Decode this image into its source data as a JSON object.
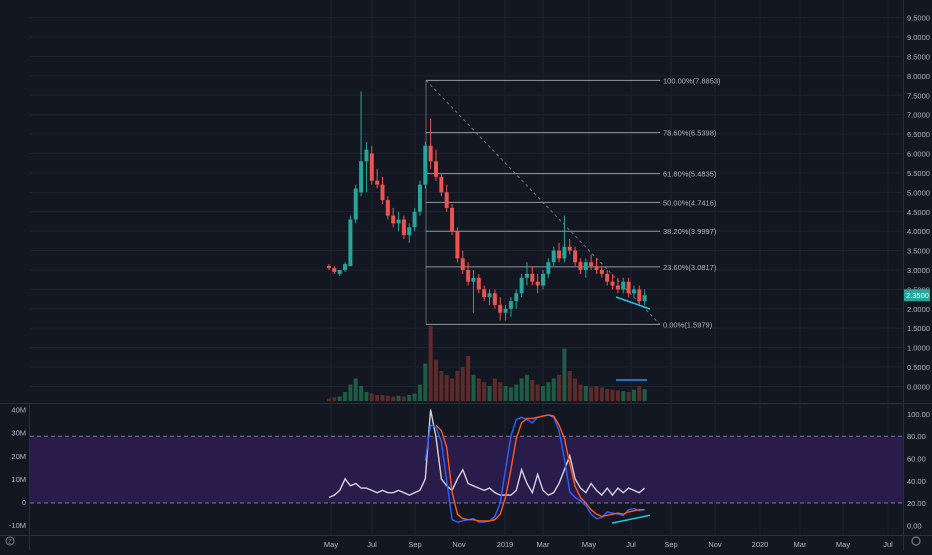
{
  "theme": {
    "background": "#131722",
    "grid": "#1f2330",
    "axis_text": "#b2b5be",
    "up": "#26a69a",
    "down": "#ef5350",
    "up_dark": "#1e5c45",
    "down_dark": "#5e2b2b",
    "fib_line": "#9598a1",
    "stoch_k": "#2962ff",
    "stoch_d": "#ff5722",
    "band": "#2a1c4a",
    "volume_line": "#d1d4dc",
    "trend": "#26c6da",
    "price_tag": "#26a69a"
  },
  "chart_data": [
    {
      "type": "candlestick",
      "panel": "price",
      "y_ticks": [
        "9.5000",
        "9.0000",
        "8.5000",
        "8.0000",
        "7.5000",
        "7.0000",
        "6.5000",
        "6.0000",
        "5.5000",
        "5.0000",
        "4.5000",
        "4.0000",
        "3.5000",
        "3.0000",
        "2.5000",
        "2.0000",
        "1.5000",
        "1.0000",
        "0.5000",
        "0.0000"
      ],
      "ylim": [
        -0.4,
        9.8
      ],
      "x_labels": [
        "May",
        "Jul",
        "Sep",
        "Nov",
        "2019",
        "Mar",
        "May",
        "Jul",
        "Sep",
        "Nov",
        "2020",
        "Mar",
        "May",
        "Jul"
      ],
      "last_price": "2.3500",
      "candles": [
        [
          3.1,
          3.15,
          3.0,
          3.05
        ],
        [
          3.05,
          3.1,
          2.9,
          2.95
        ],
        [
          2.9,
          3.0,
          2.85,
          3.0
        ],
        [
          3.0,
          3.2,
          2.95,
          3.15
        ],
        [
          3.1,
          4.4,
          3.1,
          4.3
        ],
        [
          4.3,
          5.2,
          4.2,
          5.1
        ],
        [
          5.0,
          7.6,
          4.9,
          5.8
        ],
        [
          5.8,
          6.3,
          5.0,
          6.1
        ],
        [
          6.0,
          6.2,
          5.2,
          5.3
        ],
        [
          5.3,
          5.6,
          5.1,
          5.2
        ],
        [
          5.2,
          5.4,
          4.7,
          4.8
        ],
        [
          4.8,
          4.9,
          4.3,
          4.4
        ],
        [
          4.4,
          4.6,
          4.1,
          4.2
        ],
        [
          4.2,
          4.5,
          4.0,
          4.3
        ],
        [
          4.3,
          4.4,
          3.8,
          3.9
        ],
        [
          3.9,
          4.2,
          3.7,
          4.1
        ],
        [
          4.1,
          4.6,
          4.0,
          4.5
        ],
        [
          4.5,
          5.3,
          4.4,
          5.2
        ],
        [
          5.2,
          6.3,
          5.1,
          6.2
        ],
        [
          6.2,
          6.9,
          5.6,
          5.8
        ],
        [
          5.8,
          6.1,
          5.3,
          5.4
        ],
        [
          5.4,
          5.5,
          4.9,
          5.0
        ],
        [
          5.0,
          5.2,
          4.5,
          4.6
        ],
        [
          4.6,
          4.7,
          3.9,
          4.0
        ],
        [
          4.0,
          4.1,
          3.2,
          3.3
        ],
        [
          3.3,
          3.5,
          2.9,
          3.0
        ],
        [
          3.0,
          3.2,
          2.6,
          2.7
        ],
        [
          2.7,
          3.0,
          1.9,
          2.8
        ],
        [
          2.8,
          2.9,
          2.4,
          2.5
        ],
        [
          2.5,
          2.6,
          2.2,
          2.3
        ],
        [
          2.3,
          2.5,
          2.1,
          2.4
        ],
        [
          2.4,
          2.5,
          2.0,
          2.1
        ],
        [
          2.1,
          2.3,
          1.7,
          1.9
        ],
        [
          1.9,
          2.1,
          1.7,
          2.0
        ],
        [
          2.0,
          2.3,
          1.8,
          2.2
        ],
        [
          2.2,
          2.5,
          2.0,
          2.4
        ],
        [
          2.4,
          2.9,
          2.3,
          2.8
        ],
        [
          2.8,
          3.2,
          2.6,
          2.9
        ],
        [
          2.9,
          3.1,
          2.6,
          2.7
        ],
        [
          2.7,
          2.9,
          2.4,
          2.6
        ],
        [
          2.6,
          3.0,
          2.5,
          2.9
        ],
        [
          2.9,
          3.3,
          2.8,
          3.2
        ],
        [
          3.2,
          3.6,
          3.1,
          3.5
        ],
        [
          3.5,
          3.7,
          3.2,
          3.3
        ],
        [
          3.3,
          4.4,
          3.2,
          3.6
        ],
        [
          3.6,
          3.8,
          3.4,
          3.5
        ],
        [
          3.5,
          3.6,
          3.1,
          3.2
        ],
        [
          3.2,
          3.3,
          2.9,
          3.0
        ],
        [
          3.0,
          3.3,
          2.8,
          3.2
        ],
        [
          3.2,
          3.4,
          3.0,
          3.1
        ],
        [
          3.1,
          3.3,
          2.9,
          3.0
        ],
        [
          3.0,
          3.1,
          2.8,
          2.9
        ],
        [
          2.9,
          3.0,
          2.6,
          2.7
        ],
        [
          2.7,
          2.9,
          2.5,
          2.6
        ],
        [
          2.6,
          2.8,
          2.4,
          2.5
        ],
        [
          2.5,
          2.8,
          2.4,
          2.7
        ],
        [
          2.7,
          2.8,
          2.3,
          2.4
        ],
        [
          2.4,
          2.6,
          2.3,
          2.5
        ],
        [
          2.5,
          2.6,
          2.1,
          2.2
        ],
        [
          2.2,
          2.5,
          2.1,
          2.35
        ]
      ],
      "volumes": [
        0.03,
        0.05,
        0.06,
        0.12,
        0.22,
        0.3,
        0.2,
        0.12,
        0.1,
        0.08,
        0.08,
        0.07,
        0.06,
        0.07,
        0.06,
        0.08,
        0.1,
        0.22,
        0.5,
        1.0,
        0.55,
        0.4,
        0.35,
        0.3,
        0.4,
        0.45,
        0.6,
        0.35,
        0.3,
        0.25,
        0.2,
        0.3,
        0.25,
        0.2,
        0.18,
        0.22,
        0.3,
        0.35,
        0.28,
        0.22,
        0.2,
        0.25,
        0.3,
        0.35,
        0.7,
        0.4,
        0.3,
        0.22,
        0.2,
        0.18,
        0.2,
        0.18,
        0.16,
        0.15,
        0.14,
        0.13,
        0.12,
        0.15,
        0.2,
        0.16
      ],
      "fib_levels": [
        {
          "label": "100.00%(7.8853)",
          "value": 7.8853
        },
        {
          "label": "78.60%(6.5398)",
          "value": 6.5398
        },
        {
          "label": "61.80%(5.4835)",
          "value": 5.4835
        },
        {
          "label": "50.00%(4.7416)",
          "value": 4.7416
        },
        {
          "label": "38.20%(3.9997)",
          "value": 3.9997
        },
        {
          "label": "23.60%(3.0817)",
          "value": 3.0817
        },
        {
          "label": "0.00%(1.5979)",
          "value": 1.5979
        }
      ]
    },
    {
      "type": "line",
      "panel": "oscillator",
      "left_ticks": [
        "40M",
        "30M",
        "20M",
        "10M",
        "0",
        "-10M"
      ],
      "left_values": [
        40,
        30,
        20,
        10,
        0,
        -10
      ],
      "left_ylim": [
        -13,
        42
      ],
      "right_ticks": [
        "100.00",
        "80.00",
        "60.00",
        "40.00",
        "20.00",
        "0.00"
      ],
      "right_values": [
        100,
        80,
        60,
        40,
        20,
        0
      ],
      "right_ylim": [
        -6,
        108
      ],
      "band": [
        20,
        80
      ],
      "volume_ma": [
        2,
        3,
        5,
        10,
        7,
        8,
        6,
        6,
        5,
        4,
        5,
        4,
        4,
        5,
        4,
        3,
        4,
        5,
        10,
        40,
        28,
        10,
        7,
        5,
        10,
        14,
        8,
        7,
        6,
        5,
        6,
        4,
        3,
        3,
        3,
        5,
        14,
        8,
        4,
        12,
        5,
        3,
        4,
        8,
        14,
        20,
        10,
        6,
        4,
        8,
        5,
        3,
        6,
        3,
        6,
        4,
        6,
        5,
        4,
        6
      ],
      "stoch_k": [
        null,
        null,
        null,
        null,
        null,
        null,
        null,
        null,
        null,
        null,
        null,
        null,
        null,
        null,
        null,
        null,
        null,
        null,
        58,
        90,
        88,
        75,
        40,
        5,
        3,
        4,
        5,
        6,
        3,
        3,
        4,
        8,
        20,
        50,
        80,
        95,
        97,
        95,
        92,
        97,
        98,
        99,
        97,
        85,
        60,
        30,
        25,
        22,
        18,
        10,
        6,
        7,
        12,
        11,
        10,
        9,
        14,
        15,
        13,
        14
      ],
      "stoch_d": [
        null,
        null,
        null,
        null,
        null,
        null,
        null,
        null,
        null,
        null,
        null,
        null,
        null,
        null,
        null,
        null,
        null,
        null,
        null,
        null,
        90,
        85,
        70,
        30,
        10,
        6,
        5,
        5,
        4,
        4,
        4,
        5,
        10,
        25,
        50,
        78,
        92,
        96,
        96,
        97,
        98,
        99,
        98,
        90,
        78,
        55,
        35,
        25,
        20,
        14,
        10,
        8,
        9,
        10,
        11,
        10,
        12,
        13,
        14,
        14
      ]
    }
  ],
  "scale_badge": "Z",
  "settings_icon": "gear-icon"
}
